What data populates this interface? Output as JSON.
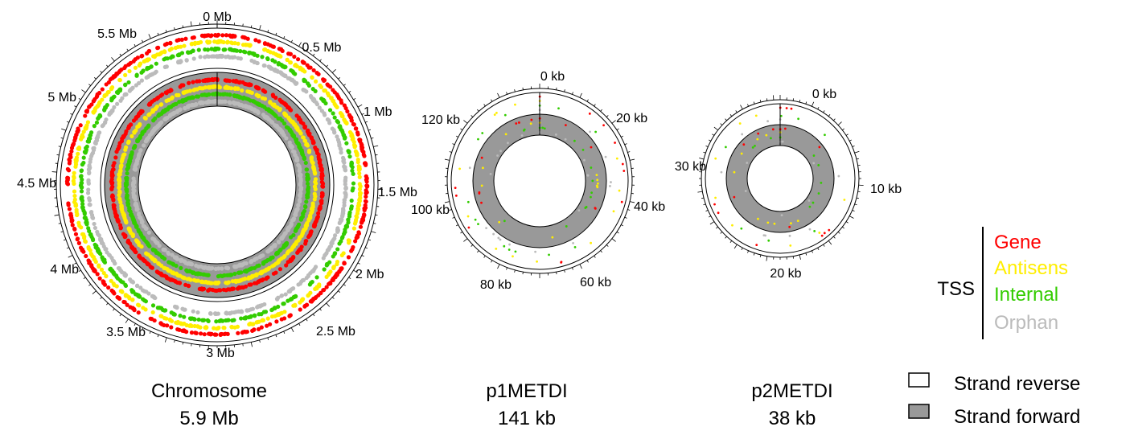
{
  "colors": {
    "gene": "#ff0000",
    "antisense": "#ffee00",
    "internal": "#33cc00",
    "orphan": "#bbbbbb",
    "strand_forward_fill": "#999999",
    "strand_reverse_fill": "#ffffff",
    "outline": "#000000"
  },
  "genomes": [
    {
      "id": "chromosome",
      "name": "Chromosome",
      "size_label": "5.9 Mb",
      "tick_labels": [
        "0 Mb",
        "0.5 Mb",
        "1 Mb",
        "1.5 Mb",
        "2 Mb",
        "2.5 Mb",
        "3 Mb",
        "3.5 Mb",
        "4 Mb",
        "4.5 Mb",
        "5 Mb",
        "5.5 Mb"
      ],
      "track_style": "dense"
    },
    {
      "id": "p1metdi",
      "name": "p1METDI",
      "size_label": "141 kb",
      "tick_labels": [
        "0 kb",
        "20 kb",
        "40 kb",
        "60 kb",
        "80 kb",
        "100 kb",
        "120 kb"
      ],
      "track_style": "sparse"
    },
    {
      "id": "p2metdi",
      "name": "p2METDI",
      "size_label": "38 kb",
      "tick_labels": [
        "0 kb",
        "10 kb",
        "20 kb",
        "30 kb"
      ],
      "track_style": "sparse"
    }
  ],
  "legend": {
    "tss_label": "TSS",
    "categories": [
      {
        "key": "gene",
        "label": "Gene"
      },
      {
        "key": "antisense",
        "label": "Antisens"
      },
      {
        "key": "internal",
        "label": "Internal"
      },
      {
        "key": "orphan",
        "label": "Orphan"
      }
    ],
    "strands": [
      {
        "key": "reverse",
        "label": "Strand reverse"
      },
      {
        "key": "forward",
        "label": "Strand forward"
      }
    ]
  }
}
